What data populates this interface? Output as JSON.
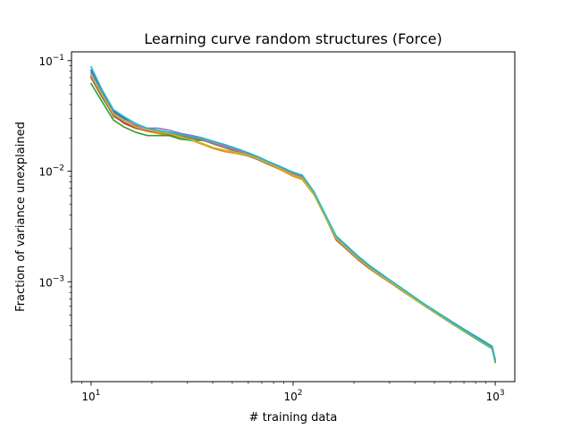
{
  "chart_data": {
    "type": "line",
    "title": "Learning curve random structures (Force)",
    "xlabel": "# training data",
    "ylabel": "Fraction of variance unexplained",
    "xscale": "log",
    "yscale": "log",
    "xlim": [
      8,
      1250
    ],
    "ylim": [
      0.000125,
      0.12
    ],
    "grid": false,
    "xticks": [
      {
        "value": 10,
        "label": "10",
        "exp": "1"
      },
      {
        "value": 100,
        "label": "10",
        "exp": "2"
      },
      {
        "value": 1000,
        "label": "10",
        "exp": "3"
      }
    ],
    "yticks": [
      {
        "value": 0.001,
        "label": "10",
        "exp": "−3"
      },
      {
        "value": 0.01,
        "label": "10",
        "exp": "−2"
      },
      {
        "value": 0.1,
        "label": "10",
        "exp": "−1"
      }
    ],
    "x": [
      10,
      11.3,
      12.9,
      14.6,
      16.6,
      18.9,
      21.4,
      24.3,
      27.6,
      31.4,
      35.6,
      40.4,
      45.9,
      52.1,
      59.2,
      67.2,
      76.3,
      86.6,
      98.4,
      111,
      127,
      144,
      163,
      185,
      210,
      239,
      271,
      308,
      350,
      397,
      451,
      512,
      581,
      660,
      749,
      851,
      966,
      1000
    ],
    "series": [
      {
        "color": "#1f77b4",
        "values": [
          0.082,
          0.052,
          0.035,
          0.03,
          0.026,
          0.024,
          0.023,
          0.022,
          0.021,
          0.021,
          0.02,
          0.018,
          0.017,
          0.0158,
          0.0145,
          0.0132,
          0.0118,
          0.0107,
          0.0096,
          0.009,
          0.0063,
          0.004,
          0.0026,
          0.0021,
          0.00168,
          0.00138,
          0.00117,
          0.001,
          0.00085,
          0.00072,
          0.00062,
          0.000535,
          0.000462,
          0.000398,
          0.000345,
          0.0003,
          0.00026,
          0.000198
        ]
      },
      {
        "color": "#ff7f0e",
        "values": [
          0.075,
          0.05,
          0.031,
          0.028,
          0.025,
          0.023,
          0.022,
          0.021,
          0.02,
          0.019,
          0.0175,
          0.016,
          0.015,
          0.0145,
          0.0138,
          0.0127,
          0.0114,
          0.0103,
          0.0091,
          0.0084,
          0.0061,
          0.0039,
          0.0025,
          0.002,
          0.0016,
          0.00134,
          0.00114,
          0.00098,
          0.00084,
          0.00071,
          0.00061,
          0.000525,
          0.000452,
          0.00039,
          0.000338,
          0.000294,
          0.000255,
          0.000196
        ]
      },
      {
        "color": "#2ca02c",
        "values": [
          0.062,
          0.043,
          0.029,
          0.025,
          0.0225,
          0.021,
          0.021,
          0.021,
          0.0195,
          0.019,
          0.019,
          0.0178,
          0.0168,
          0.0157,
          0.0146,
          0.0133,
          0.012,
          0.0109,
          0.0098,
          0.0091,
          0.0064,
          0.004,
          0.0025,
          0.002,
          0.00162,
          0.00135,
          0.00115,
          0.00098,
          0.00083,
          0.0007,
          0.0006,
          0.000515,
          0.000443,
          0.000382,
          0.00033,
          0.000286,
          0.000248,
          0.000187
        ]
      },
      {
        "color": "#d62728",
        "values": [
          0.07,
          0.047,
          0.032,
          0.027,
          0.0245,
          0.0232,
          0.0225,
          0.0215,
          0.0205,
          0.0198,
          0.0193,
          0.0178,
          0.0165,
          0.0152,
          0.014,
          0.0127,
          0.0115,
          0.0105,
          0.0094,
          0.0087,
          0.0062,
          0.0039,
          0.0024,
          0.00195,
          0.00158,
          0.00131,
          0.00112,
          0.00096,
          0.00082,
          0.0007,
          0.0006,
          0.000518,
          0.000447,
          0.000386,
          0.000334,
          0.00029,
          0.000252,
          0.000192
        ]
      },
      {
        "color": "#9467bd",
        "values": [
          0.078,
          0.051,
          0.034,
          0.029,
          0.026,
          0.0245,
          0.0245,
          0.0235,
          0.022,
          0.021,
          0.0198,
          0.0183,
          0.017,
          0.0157,
          0.0144,
          0.0131,
          0.0118,
          0.0107,
          0.0096,
          0.0089,
          0.0063,
          0.004,
          0.0025,
          0.00202,
          0.00163,
          0.00135,
          0.00115,
          0.00099,
          0.00084,
          0.00071,
          0.00061,
          0.000525,
          0.000452,
          0.00039,
          0.000337,
          0.000292,
          0.000254,
          0.000194
        ]
      },
      {
        "color": "#8c564b",
        "values": [
          0.073,
          0.049,
          0.033,
          0.0285,
          0.0255,
          0.0238,
          0.023,
          0.0222,
          0.0212,
          0.0202,
          0.0192,
          0.0176,
          0.0163,
          0.0151,
          0.0139,
          0.0127,
          0.0115,
          0.0105,
          0.0094,
          0.0087,
          0.0062,
          0.0039,
          0.00245,
          0.00198,
          0.0016,
          0.00133,
          0.00113,
          0.00097,
          0.00083,
          0.0007,
          0.000605,
          0.00052,
          0.000448,
          0.000387,
          0.000335,
          0.00029,
          0.000252,
          0.000193
        ]
      },
      {
        "color": "#e377c2",
        "values": [
          0.076,
          0.05,
          0.033,
          0.029,
          0.0265,
          0.024,
          0.023,
          0.0225,
          0.0215,
          0.0205,
          0.0196,
          0.018,
          0.0167,
          0.0154,
          0.0142,
          0.013,
          0.0117,
          0.0106,
          0.0095,
          0.0088,
          0.0063,
          0.0039,
          0.0025,
          0.002,
          0.00162,
          0.00134,
          0.00114,
          0.00098,
          0.00084,
          0.00071,
          0.000608,
          0.000522,
          0.00045,
          0.000388,
          0.000336,
          0.000291,
          0.000253,
          0.000193
        ]
      },
      {
        "color": "#7f7f7f",
        "values": [
          0.071,
          0.048,
          0.032,
          0.028,
          0.025,
          0.0235,
          0.0228,
          0.022,
          0.021,
          0.02,
          0.0192,
          0.0177,
          0.0164,
          0.0152,
          0.014,
          0.0128,
          0.0116,
          0.0105,
          0.0094,
          0.0087,
          0.0062,
          0.0039,
          0.00247,
          0.00199,
          0.00161,
          0.00133,
          0.00113,
          0.00097,
          0.00083,
          0.0007,
          0.000603,
          0.000518,
          0.000446,
          0.000385,
          0.000333,
          0.000289,
          0.000251,
          0.000191
        ]
      },
      {
        "color": "#bcbd22",
        "values": [
          0.074,
          0.05,
          0.033,
          0.0285,
          0.0252,
          0.0236,
          0.0226,
          0.0218,
          0.0205,
          0.0192,
          0.0178,
          0.0163,
          0.0155,
          0.0148,
          0.014,
          0.0129,
          0.0116,
          0.0105,
          0.0093,
          0.0086,
          0.0062,
          0.0039,
          0.00246,
          0.00199,
          0.00161,
          0.00133,
          0.00113,
          0.00097,
          0.00083,
          0.0007,
          0.000605,
          0.00052,
          0.000448,
          0.000386,
          0.000334,
          0.00029,
          0.000251,
          0.000192
        ]
      },
      {
        "color": "#17becf",
        "values": [
          0.088,
          0.055,
          0.036,
          0.031,
          0.027,
          0.0245,
          0.0235,
          0.0225,
          0.0215,
          0.0205,
          0.02,
          0.0186,
          0.0174,
          0.0161,
          0.0148,
          0.0135,
          0.0121,
          0.011,
          0.0099,
          0.0092,
          0.0065,
          0.0041,
          0.0026,
          0.0021,
          0.0017,
          0.0014,
          0.00119,
          0.00101,
          0.00086,
          0.00073,
          0.00062,
          0.000533,
          0.000458,
          0.000394,
          0.00034,
          0.000294,
          0.000255,
          0.000195
        ]
      }
    ]
  }
}
